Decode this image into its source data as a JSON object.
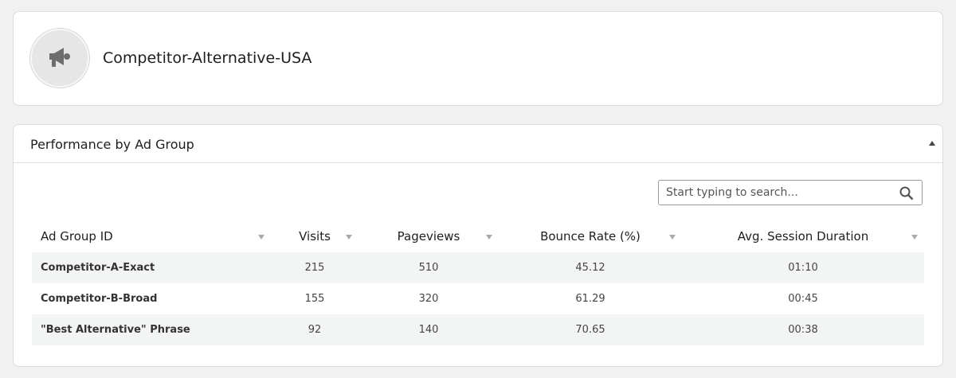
{
  "header": {
    "title": "Competitor-Alternative-USA"
  },
  "panel": {
    "title": "Performance by Ad Group"
  },
  "search": {
    "placeholder": "Start typing to search..."
  },
  "table": {
    "columns": [
      "Ad Group ID",
      "Visits",
      "Pageviews",
      "Bounce Rate (%)",
      "Avg. Session Duration"
    ],
    "rows": [
      [
        "Competitor-A-Exact",
        215,
        510,
        45.12,
        "01:10"
      ],
      [
        "Competitor-B-Broad",
        155,
        320,
        61.29,
        "00:45"
      ],
      [
        "\"Best Alternative\" Phrase",
        92,
        140,
        70.65,
        "00:38"
      ]
    ]
  }
}
